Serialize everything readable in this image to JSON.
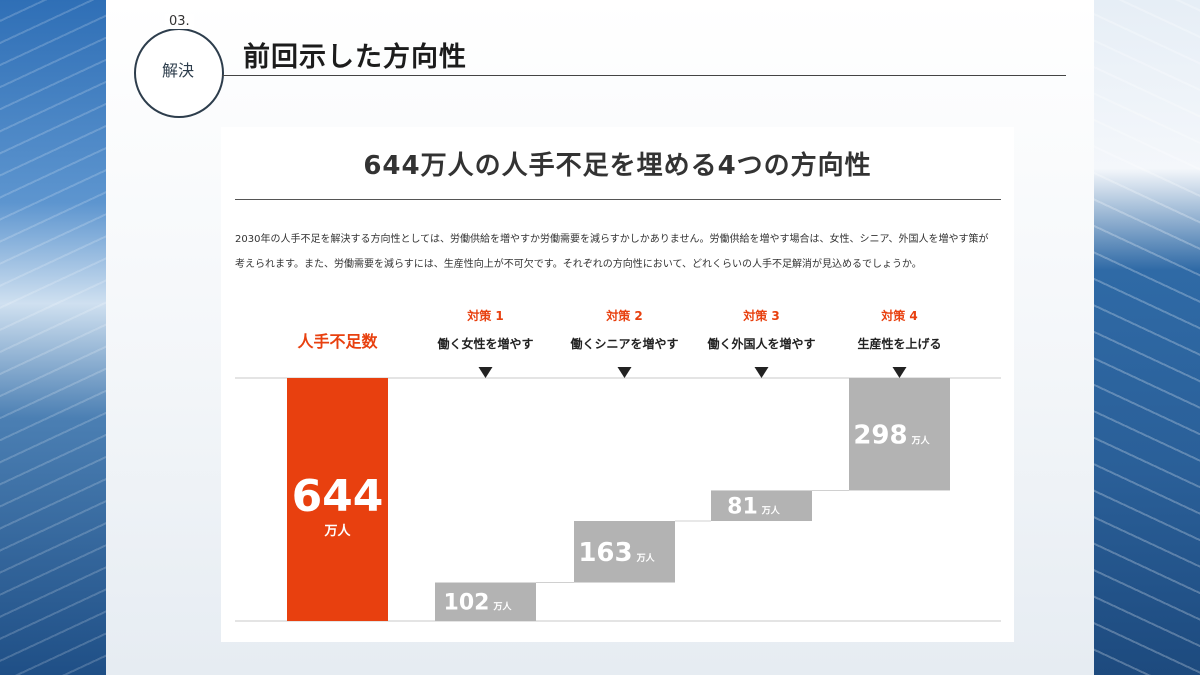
{
  "header": {
    "section_number": "03.",
    "section_label": "解決",
    "title": "前回示した方向性"
  },
  "chart_data": {
    "type": "bar",
    "title": "644万人の人手不足を埋める4つの方向性",
    "description_lines": [
      "2030年の人手不足を解決する方向性としては、労働供給を増やすか労働需要を減らすかしかありません。労働供給を増やす場合は、女性、シニア、外国人を増やす策が",
      "考えられます。また、労働需要を減らすには、生産性向上が不可欠です。それぞれの方向性において、どれくらいの人手不足解消が見込めるでしょうか。"
    ],
    "unit": "万人",
    "total": {
      "label": "人手不足数",
      "value": 644,
      "color": "#e8400f"
    },
    "measures": [
      {
        "tag": "対策 1",
        "label": "働く女性を増やす",
        "value": 102
      },
      {
        "tag": "対策 2",
        "label": "働くシニアを増やす",
        "value": 163
      },
      {
        "tag": "対策 3",
        "label": "働く外国人を増やす",
        "value": 81
      },
      {
        "tag": "対策 4",
        "label": "生産性を上げる",
        "value": 298
      }
    ],
    "colors": {
      "total": "#e8400f",
      "measure": "#b3b3b3",
      "tag": "#e8400f"
    }
  }
}
